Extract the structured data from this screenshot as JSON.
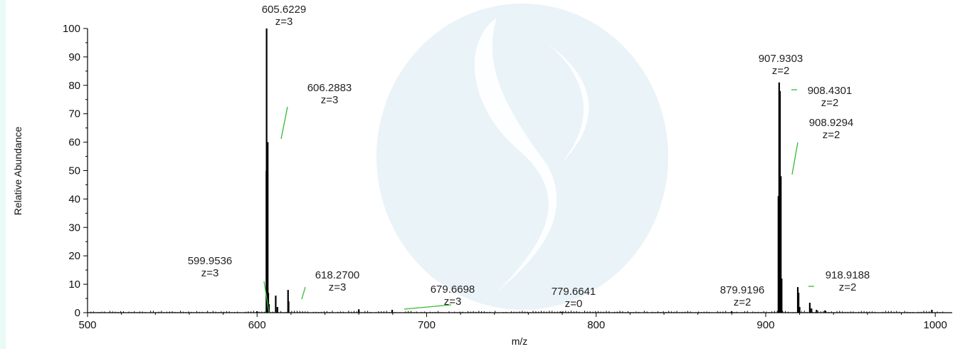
{
  "chart_data": {
    "type": "bar",
    "title": "",
    "xlabel": "m/z",
    "ylabel": "Relative Abundance",
    "xlim": [
      500,
      1010
    ],
    "ylim": [
      0,
      100
    ],
    "xticks": [
      500,
      600,
      700,
      800,
      900,
      1000
    ],
    "yticks": [
      0,
      10,
      20,
      30,
      40,
      50,
      60,
      70,
      80,
      90,
      100
    ],
    "grid": false,
    "series": [
      {
        "values": [
          {
            "mz": 605.5,
            "y": 50
          },
          {
            "mz": 605.6229,
            "y": 100
          },
          {
            "mz": 606.2883,
            "y": 60
          },
          {
            "mz": 606.62,
            "y": 7
          },
          {
            "mz": 607.0,
            "y": 3
          },
          {
            "mz": 611.0,
            "y": 6
          },
          {
            "mz": 612.0,
            "y": 2
          },
          {
            "mz": 618.27,
            "y": 8
          },
          {
            "mz": 618.6,
            "y": 4
          },
          {
            "mz": 599.9536,
            "y": 0.5
          },
          {
            "mz": 660.0,
            "y": 1.2
          },
          {
            "mz": 679.6698,
            "y": 1
          },
          {
            "mz": 779.6641,
            "y": 0.3
          },
          {
            "mz": 879.9196,
            "y": 0.5
          },
          {
            "mz": 907.5,
            "y": 41
          },
          {
            "mz": 907.9303,
            "y": 81
          },
          {
            "mz": 908.4301,
            "y": 78
          },
          {
            "mz": 908.9294,
            "y": 48
          },
          {
            "mz": 909.4,
            "y": 12
          },
          {
            "mz": 918.9188,
            "y": 9
          },
          {
            "mz": 919.4,
            "y": 7
          },
          {
            "mz": 920.0,
            "y": 2
          },
          {
            "mz": 926.0,
            "y": 3.5
          },
          {
            "mz": 927.0,
            "y": 1.5
          },
          {
            "mz": 930.0,
            "y": 1
          },
          {
            "mz": 935.0,
            "y": 0.8
          },
          {
            "mz": 998.0,
            "y": 1
          }
        ]
      }
    ],
    "annotations": [
      {
        "mass": "605.6229",
        "charge": "z=3",
        "mz": 605.6229,
        "y": 100
      },
      {
        "mass": "606.2883",
        "charge": "z=3",
        "mz": 606.2883,
        "y": 60
      },
      {
        "mass": "599.9536",
        "charge": "z=3",
        "mz": 599.9536,
        "y": 0
      },
      {
        "mass": "618.2700",
        "charge": "z=3",
        "mz": 618.27,
        "y": 8
      },
      {
        "mass": "679.6698",
        "charge": "z=3",
        "mz": 679.6698,
        "y": 1
      },
      {
        "mass": "779.6641",
        "charge": "z=0",
        "mz": 779.6641,
        "y": 0
      },
      {
        "mass": "879.9196",
        "charge": "z=2",
        "mz": 879.9196,
        "y": 0
      },
      {
        "mass": "907.9303",
        "charge": "z=2",
        "mz": 907.9303,
        "y": 81
      },
      {
        "mass": "908.4301",
        "charge": "z=2",
        "mz": 908.4301,
        "y": 78
      },
      {
        "mass": "908.9294",
        "charge": "z=2",
        "mz": 908.9294,
        "y": 48
      },
      {
        "mass": "918.9188",
        "charge": "z=2",
        "mz": 918.9188,
        "y": 9
      }
    ],
    "colors": {
      "bars": "#000000",
      "leader": "#33bb33",
      "watermark": "#d8eaf0"
    }
  }
}
